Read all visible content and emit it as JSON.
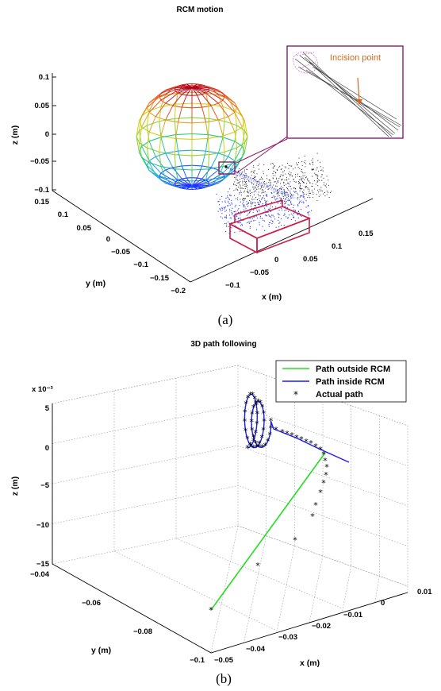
{
  "chart_data": [
    {
      "type": "3d-mesh",
      "title": "RCM motion",
      "caption": "(a)",
      "xlabel": "x (m)",
      "ylabel": "y (m)",
      "zlabel": "z (m)",
      "x_ticks": [
        "0.15",
        "0.1",
        "0.05",
        "0",
        "−0.05",
        "−0.1"
      ],
      "y_ticks": [
        "0.15",
        "0.1",
        "0.05",
        "0",
        "−0.05",
        "−0.1",
        "−0.15",
        "−0.2"
      ],
      "z_ticks": [
        "0.1",
        "0.05",
        "0",
        "−0.05",
        "−0.1"
      ],
      "xlim": [
        -0.1,
        0.15
      ],
      "ylim": [
        -0.2,
        0.15
      ],
      "zlim": [
        -0.1,
        0.1
      ],
      "inset_annotation": "Incision point",
      "colors": {
        "sphere_top": "#c8141e",
        "sphere_mid": "#e6d21e",
        "sphere_low": "#1ec8a0",
        "sphere_bottom": "#1e3cff",
        "box": "#cc1e46",
        "inset_border": "#8b1a6b",
        "inset_text": "#d2691e"
      }
    },
    {
      "type": "3d-line",
      "title": "3D path following",
      "caption": "(b)",
      "xlabel": "x (m)",
      "ylabel": "y (m)",
      "zlabel": "z (m)",
      "z_multiplier": "x 10⁻³",
      "x_ticks": [
        "0.01",
        "0",
        "−0.01",
        "−0.02",
        "−0.03",
        "−0.04",
        "−0.05"
      ],
      "y_ticks": [
        "−0.04",
        "−0.06",
        "−0.08",
        "−0.1"
      ],
      "z_ticks": [
        "5",
        "0",
        "−5",
        "−10",
        "−15"
      ],
      "xlim": [
        -0.05,
        0.01
      ],
      "ylim": [
        -0.1,
        -0.04
      ],
      "zlim": [
        -15,
        5
      ],
      "grid": true,
      "legend_position": "top-right",
      "series": [
        {
          "name": "Path outside RCM",
          "color": "#22dd22",
          "style": "line"
        },
        {
          "name": "Path inside RCM",
          "color": "#1a1aff",
          "style": "line"
        },
        {
          "name": "Actual path",
          "color": "#000000",
          "style": "asterisk"
        }
      ]
    }
  ]
}
